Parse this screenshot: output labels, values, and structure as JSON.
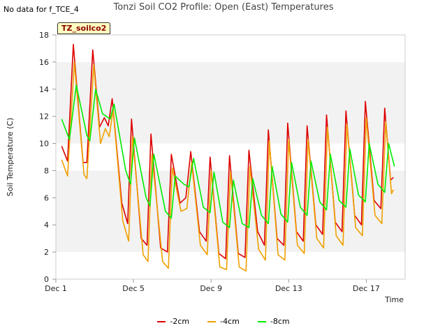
{
  "header": {
    "nodata": "No data for f_TCE_4",
    "title": "Tonzi Soil CO2 Profile: Open (East) Temperatures"
  },
  "badge": "TZ_soilco2",
  "chart_data": {
    "type": "line",
    "title": "Tonzi Soil CO2 Profile: Open (East) Temperatures",
    "xlabel": "Time",
    "ylabel": "Soil Temperature (C)",
    "ylim": [
      0,
      18
    ],
    "xlim": [
      1,
      19
    ],
    "yticks": [
      0,
      2,
      4,
      6,
      8,
      10,
      12,
      14,
      16,
      18
    ],
    "xticks": [
      {
        "day": 1,
        "label": "Dec 1"
      },
      {
        "day": 5,
        "label": "Dec 5"
      },
      {
        "day": 9,
        "label": "Dec 9"
      },
      {
        "day": 13,
        "label": "Dec 13"
      },
      {
        "day": 17,
        "label": "Dec 17"
      }
    ],
    "grid": "horizontal bands",
    "legend": "bottom",
    "series": [
      {
        "name": "-2cm",
        "color": "#dd0000",
        "points": [
          [
            1.3,
            9.8
          ],
          [
            1.6,
            8.7
          ],
          [
            1.9,
            17.3
          ],
          [
            2.4,
            8.6
          ],
          [
            2.6,
            8.6
          ],
          [
            2.9,
            16.9
          ],
          [
            3.25,
            11.2
          ],
          [
            3.5,
            11.9
          ],
          [
            3.7,
            11.3
          ],
          [
            3.9,
            13.3
          ],
          [
            4.4,
            5.6
          ],
          [
            4.7,
            4.1
          ],
          [
            4.9,
            11.8
          ],
          [
            5.4,
            3.0
          ],
          [
            5.7,
            2.5
          ],
          [
            5.9,
            10.7
          ],
          [
            6.4,
            2.3
          ],
          [
            6.75,
            2.0
          ],
          [
            6.95,
            9.2
          ],
          [
            7.4,
            5.6
          ],
          [
            7.7,
            6.0
          ],
          [
            7.95,
            9.4
          ],
          [
            8.4,
            3.5
          ],
          [
            8.75,
            2.8
          ],
          [
            8.95,
            9.0
          ],
          [
            9.4,
            1.9
          ],
          [
            9.75,
            1.5
          ],
          [
            9.95,
            9.1
          ],
          [
            10.4,
            1.9
          ],
          [
            10.75,
            1.6
          ],
          [
            10.95,
            9.5
          ],
          [
            11.4,
            3.5
          ],
          [
            11.75,
            2.5
          ],
          [
            11.95,
            11.0
          ],
          [
            12.4,
            3.0
          ],
          [
            12.75,
            2.5
          ],
          [
            12.95,
            11.5
          ],
          [
            13.4,
            3.5
          ],
          [
            13.75,
            2.8
          ],
          [
            13.95,
            11.3
          ],
          [
            14.4,
            4.0
          ],
          [
            14.75,
            3.3
          ],
          [
            14.95,
            12.1
          ],
          [
            15.4,
            4.2
          ],
          [
            15.75,
            3.5
          ],
          [
            15.95,
            12.4
          ],
          [
            16.4,
            4.7
          ],
          [
            16.75,
            4.0
          ],
          [
            16.95,
            13.1
          ],
          [
            17.4,
            5.8
          ],
          [
            17.75,
            5.2
          ],
          [
            17.95,
            12.6
          ],
          [
            18.25,
            7.3
          ],
          [
            18.4,
            7.5
          ]
        ]
      },
      {
        "name": "-4cm",
        "color": "#f0a000",
        "points": [
          [
            1.3,
            8.8
          ],
          [
            1.6,
            7.6
          ],
          [
            1.95,
            16.0
          ],
          [
            2.45,
            7.7
          ],
          [
            2.6,
            7.4
          ],
          [
            2.95,
            15.8
          ],
          [
            3.3,
            10.0
          ],
          [
            3.55,
            11.1
          ],
          [
            3.75,
            10.5
          ],
          [
            3.95,
            12.5
          ],
          [
            4.45,
            4.3
          ],
          [
            4.75,
            2.8
          ],
          [
            4.95,
            10.5
          ],
          [
            5.5,
            1.8
          ],
          [
            5.75,
            1.3
          ],
          [
            5.95,
            9.2
          ],
          [
            6.5,
            1.3
          ],
          [
            6.8,
            0.8
          ],
          [
            7.0,
            8.2
          ],
          [
            7.45,
            5.0
          ],
          [
            7.75,
            5.2
          ],
          [
            8.0,
            8.6
          ],
          [
            8.45,
            2.5
          ],
          [
            8.8,
            1.8
          ],
          [
            9.0,
            8.0
          ],
          [
            9.45,
            0.9
          ],
          [
            9.8,
            0.7
          ],
          [
            10.0,
            7.9
          ],
          [
            10.45,
            0.9
          ],
          [
            10.8,
            0.6
          ],
          [
            11.0,
            8.3
          ],
          [
            11.45,
            2.2
          ],
          [
            11.8,
            1.4
          ],
          [
            12.0,
            10.2
          ],
          [
            12.45,
            1.8
          ],
          [
            12.8,
            1.4
          ],
          [
            13.0,
            10.3
          ],
          [
            13.45,
            2.5
          ],
          [
            13.8,
            1.9
          ],
          [
            14.0,
            10.3
          ],
          [
            14.45,
            3.0
          ],
          [
            14.8,
            2.3
          ],
          [
            15.0,
            11.2
          ],
          [
            15.45,
            3.2
          ],
          [
            15.8,
            2.5
          ],
          [
            16.0,
            11.4
          ],
          [
            16.45,
            3.8
          ],
          [
            16.8,
            3.2
          ],
          [
            17.0,
            11.9
          ],
          [
            17.45,
            4.7
          ],
          [
            17.8,
            4.1
          ],
          [
            18.0,
            11.6
          ],
          [
            18.3,
            6.3
          ],
          [
            18.4,
            6.6
          ]
        ]
      },
      {
        "name": "-8cm",
        "color": "#00ee00",
        "points": [
          [
            1.3,
            11.8
          ],
          [
            1.7,
            10.3
          ],
          [
            2.05,
            14.3
          ],
          [
            2.6,
            10.6
          ],
          [
            2.75,
            10.2
          ],
          [
            3.05,
            14.0
          ],
          [
            3.4,
            12.2
          ],
          [
            3.6,
            12.0
          ],
          [
            3.8,
            11.8
          ],
          [
            4.0,
            12.9
          ],
          [
            4.6,
            8.0
          ],
          [
            4.85,
            7.0
          ],
          [
            5.05,
            10.4
          ],
          [
            5.65,
            6.0
          ],
          [
            5.85,
            5.4
          ],
          [
            6.05,
            9.2
          ],
          [
            6.65,
            5.0
          ],
          [
            6.95,
            4.5
          ],
          [
            7.15,
            7.6
          ],
          [
            7.6,
            7.0
          ],
          [
            7.85,
            6.8
          ],
          [
            8.1,
            8.9
          ],
          [
            8.6,
            5.3
          ],
          [
            8.95,
            4.9
          ],
          [
            9.15,
            7.9
          ],
          [
            9.6,
            4.2
          ],
          [
            9.95,
            3.8
          ],
          [
            10.15,
            7.3
          ],
          [
            10.6,
            4.1
          ],
          [
            10.95,
            3.8
          ],
          [
            11.15,
            7.4
          ],
          [
            11.6,
            4.7
          ],
          [
            11.95,
            4.1
          ],
          [
            12.15,
            8.3
          ],
          [
            12.6,
            4.8
          ],
          [
            12.95,
            4.2
          ],
          [
            13.15,
            8.6
          ],
          [
            13.6,
            5.3
          ],
          [
            13.95,
            4.7
          ],
          [
            14.15,
            8.7
          ],
          [
            14.6,
            5.7
          ],
          [
            14.95,
            5.1
          ],
          [
            15.15,
            9.2
          ],
          [
            15.6,
            5.8
          ],
          [
            15.95,
            5.3
          ],
          [
            16.15,
            9.6
          ],
          [
            16.6,
            6.2
          ],
          [
            16.95,
            5.7
          ],
          [
            17.15,
            10.0
          ],
          [
            17.6,
            7.0
          ],
          [
            17.95,
            6.4
          ],
          [
            18.15,
            10.0
          ],
          [
            18.45,
            8.3
          ]
        ]
      }
    ]
  }
}
